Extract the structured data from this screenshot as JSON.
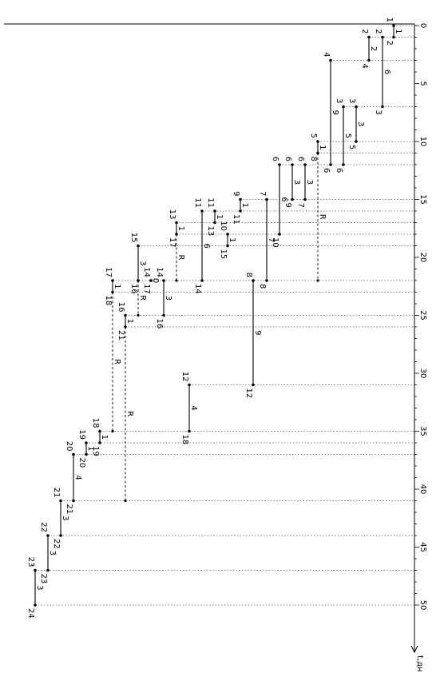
{
  "time_axis": {
    "unit_label": "t,дн",
    "ticks": [
      0,
      5,
      10,
      15,
      20,
      25,
      30,
      35,
      40,
      45,
      50
    ]
  },
  "dummy_label": "R",
  "works": [
    {
      "from": "1",
      "to": "2",
      "duration": "1",
      "start": 0,
      "end": 1
    },
    {
      "from": "2",
      "to": "3",
      "duration": "6",
      "start": 1,
      "end": 7
    },
    {
      "from": "2",
      "to": "4",
      "duration": "2",
      "start": 1,
      "end": 3
    },
    {
      "from": "4",
      "to": "6",
      "duration": "9",
      "start": 3,
      "end": 12
    },
    {
      "from": "3",
      "to": "6",
      "duration": "5",
      "start": 7,
      "end": 12
    },
    {
      "from": "3",
      "to": "5",
      "duration": "3",
      "start": 7,
      "end": 10
    },
    {
      "from": "5",
      "to": "8",
      "duration": "1",
      "start": 10,
      "end": 11
    },
    {
      "from": "6",
      "to": "10",
      "duration": "6",
      "start": 12,
      "end": 18
    },
    {
      "from": "6",
      "to": "9",
      "duration": "3",
      "start": 12,
      "end": 15
    },
    {
      "from": "6",
      "to": "7",
      "duration": "3",
      "start": 12,
      "end": 15
    },
    {
      "from": "9",
      "to": "11",
      "duration": "1",
      "start": 15,
      "end": 16
    },
    {
      "from": "7",
      "to": "8",
      "duration": "7",
      "start": 15,
      "end": 22
    },
    {
      "from": "11",
      "to": "13",
      "duration": "1",
      "start": 16,
      "end": 17
    },
    {
      "from": "11",
      "to": "14",
      "duration": "6",
      "start": 16,
      "end": 22
    },
    {
      "from": "10",
      "to": "15",
      "duration": "1",
      "start": 18,
      "end": 19
    },
    {
      "from": "13",
      "to": "17",
      "duration": "1",
      "start": 17,
      "end": 18
    },
    {
      "from": "15",
      "to": "16",
      "duration": "3",
      "start": 19,
      "end": 22
    },
    {
      "from": "14",
      "to": "17",
      "duration": "0",
      "start": 22,
      "end": 22
    },
    {
      "from": "14",
      "to": "16",
      "duration": "3",
      "start": 22,
      "end": 25
    },
    {
      "from": "17",
      "to": "18",
      "duration": "1",
      "start": 22,
      "end": 23
    },
    {
      "from": "16",
      "to": "21",
      "duration": "1",
      "start": 25,
      "end": 26
    },
    {
      "from": "8",
      "to": "12",
      "duration": "9",
      "start": 22,
      "end": 31
    },
    {
      "from": "12",
      "to": "18",
      "duration": "4",
      "start": 31,
      "end": 35
    },
    {
      "from": "18",
      "to": "19",
      "duration": "1",
      "start": 35,
      "end": 36
    },
    {
      "from": "19",
      "to": "20",
      "duration": "1",
      "start": 36,
      "end": 37
    },
    {
      "from": "20",
      "to": "21",
      "duration": "4",
      "start": 37,
      "end": 41
    },
    {
      "from": "21",
      "to": "22",
      "duration": "3",
      "start": 41,
      "end": 44
    },
    {
      "from": "22",
      "to": "23",
      "duration": "3",
      "start": 44,
      "end": 47
    },
    {
      "from": "23",
      "to": "24",
      "duration": "3",
      "start": 47,
      "end": 50
    }
  ],
  "reserves": [
    {
      "from": "8",
      "start": 11,
      "end": 22,
      "label": "R"
    },
    {
      "from": "17",
      "start": 18,
      "end": 22,
      "label": "R"
    },
    {
      "from": "16",
      "start": 22,
      "end": 25,
      "label": "R"
    },
    {
      "from": "18",
      "start": 23,
      "end": 35,
      "label": "R"
    },
    {
      "from": "21",
      "start": 26,
      "end": 41,
      "label": "R"
    }
  ]
}
